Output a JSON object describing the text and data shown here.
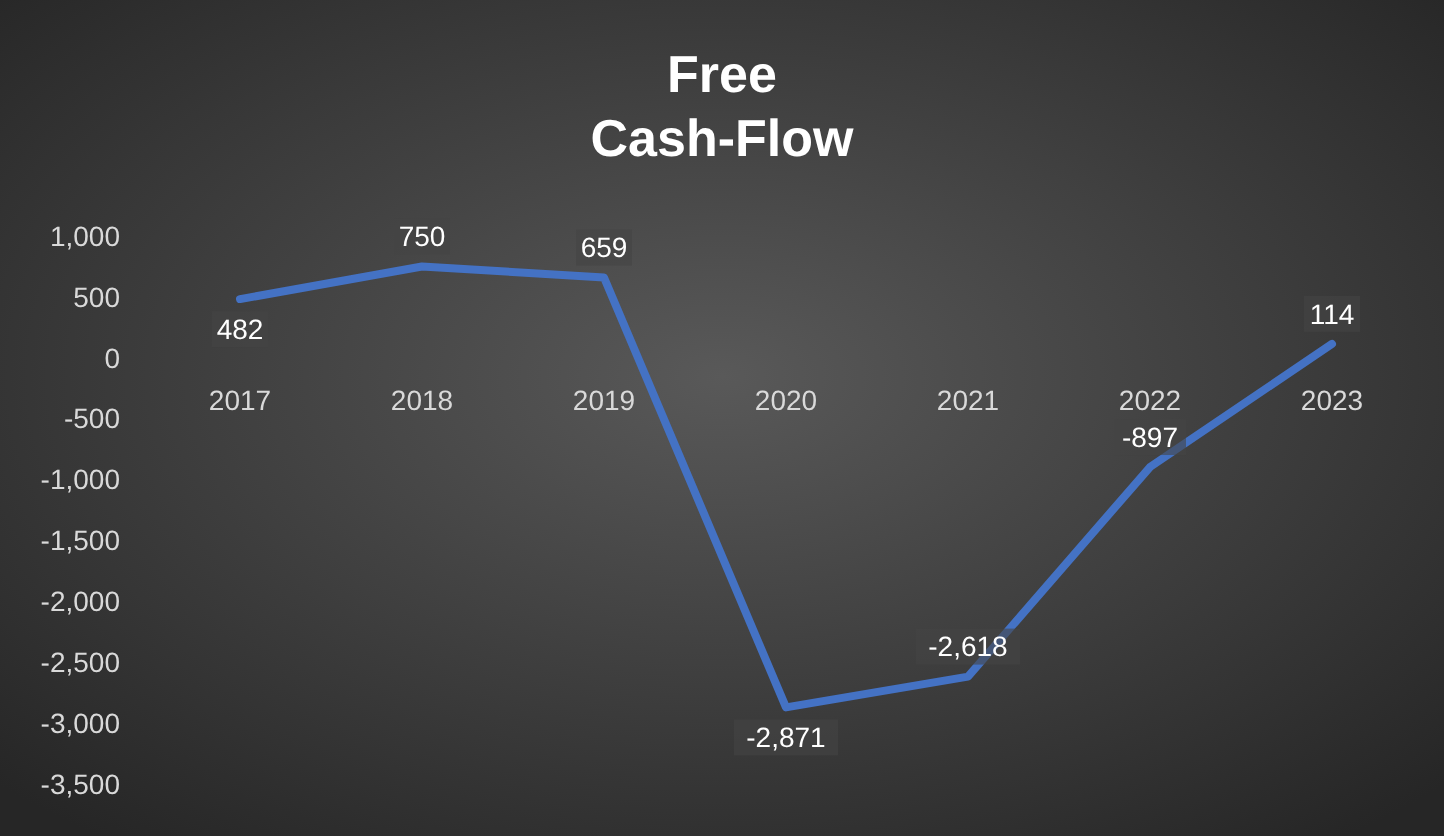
{
  "chart_data": {
    "type": "line",
    "title": "Free\nCash-Flow",
    "categories": [
      "2017",
      "2018",
      "2019",
      "2020",
      "2021",
      "2022",
      "2023"
    ],
    "series": [
      {
        "color": "#4472c4",
        "values": [
          482,
          750,
          659,
          -2871,
          -2618,
          -897,
          114
        ]
      }
    ],
    "ylim": [
      -3500,
      1000
    ],
    "yticks": [
      {
        "value": 1000,
        "label": "1,000"
      },
      {
        "value": 500,
        "label": "500"
      },
      {
        "value": 0,
        "label": "0"
      },
      {
        "value": -500,
        "label": "-500"
      },
      {
        "value": -1000,
        "label": "-1,000"
      },
      {
        "value": -1500,
        "label": "-1,500"
      },
      {
        "value": -2000,
        "label": "-2,000"
      },
      {
        "value": -2500,
        "label": "-2,500"
      },
      {
        "value": -3000,
        "label": "-3,000"
      },
      {
        "value": -3500,
        "label": "-3,500"
      }
    ],
    "value_labels": [
      "482",
      "750",
      "659",
      "-2,871",
      "-2,618",
      "-897",
      "114"
    ],
    "grid": false,
    "marker": "none",
    "line_style": "solid"
  }
}
